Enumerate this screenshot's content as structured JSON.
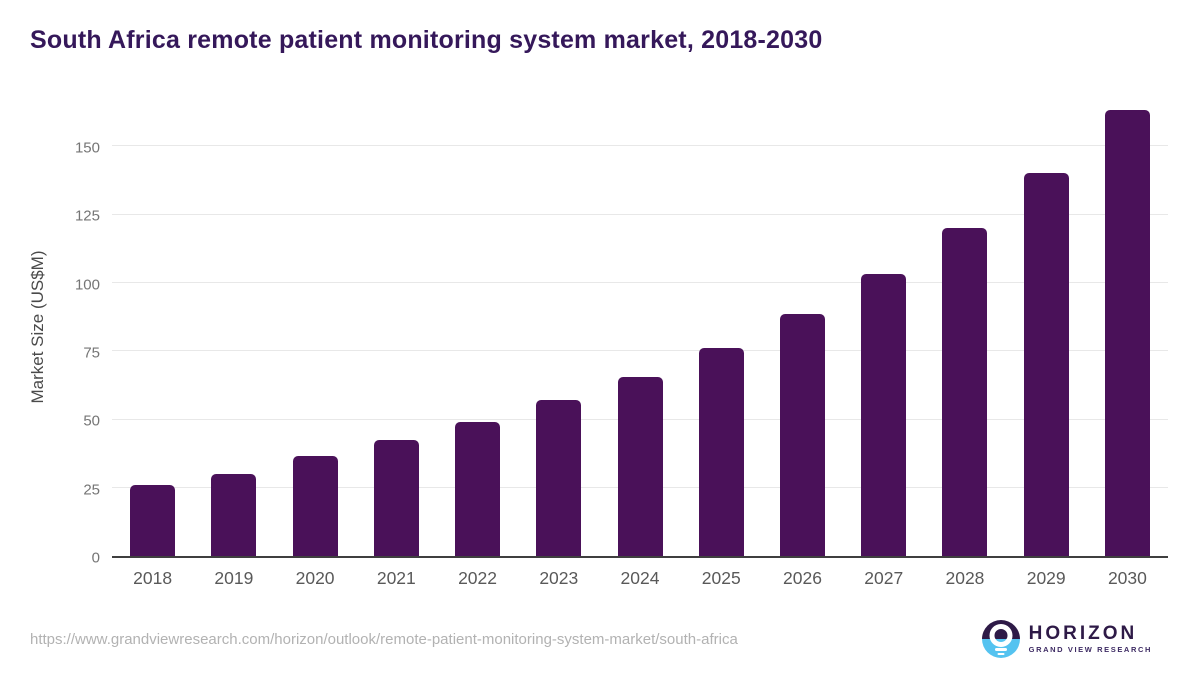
{
  "chart": {
    "title": "South Africa remote patient monitoring system market, 2018-2030",
    "ylabel": "Market Size (US$M)"
  },
  "chart_data": {
    "type": "bar",
    "title": "South Africa remote patient monitoring system market, 2018-2030",
    "xlabel": "",
    "ylabel": "Market Size (US$M)",
    "categories": [
      "2018",
      "2019",
      "2020",
      "2021",
      "2022",
      "2023",
      "2024",
      "2025",
      "2026",
      "2027",
      "2028",
      "2029",
      "2030"
    ],
    "values": [
      26,
      30,
      36.5,
      42.5,
      49,
      57,
      65.5,
      76,
      88.5,
      103,
      120,
      140,
      163
    ],
    "yticks": [
      0,
      25,
      50,
      75,
      100,
      125,
      150
    ],
    "ylim": [
      0,
      169
    ],
    "grid": true,
    "legend": "none",
    "bar_color": "#4a1159"
  },
  "footer": {
    "source_url": "https://www.grandviewresearch.com/horizon/outlook/remote-patient-monitoring-system-market/south-africa",
    "logo": {
      "name": "HORIZON",
      "subtitle": "GRAND VIEW RESEARCH"
    }
  },
  "colors": {
    "title": "#35185a",
    "bar": "#4a1159",
    "gridline": "#e8e8e8",
    "axis_line": "#3f3f3f",
    "y_tick_label": "#757575",
    "x_tick_label": "#595959",
    "y_axis_title": "#4a4a4a",
    "source_url": "#b2b2b2",
    "logo_dark_purple": "#2e1a47",
    "logo_light_blue": "#55c3f0"
  }
}
